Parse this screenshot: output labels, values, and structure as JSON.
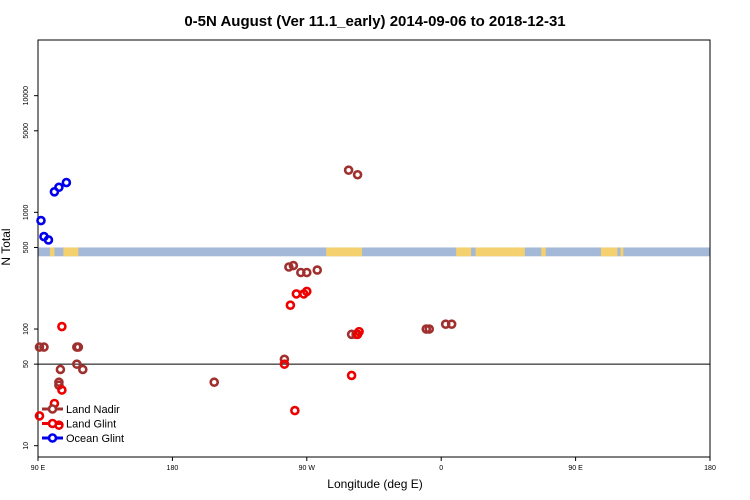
{
  "chart_data": {
    "type": "scatter",
    "title": "0-5N August (Ver 11.1_early)   2014-09-06 to 2018-12-31",
    "xlabel": "Longitude (deg E)",
    "ylabel": "N Total",
    "xlim": [
      90,
      540
    ],
    "ylim_log": [
      8,
      30000
    ],
    "y_scale": "log",
    "x_ticks": [
      {
        "value": 90,
        "label": "90 E"
      },
      {
        "value": 180,
        "label": "180"
      },
      {
        "value": 270,
        "label": "90 W"
      },
      {
        "value": 360,
        "label": "0"
      },
      {
        "value": 450,
        "label": "90 E"
      },
      {
        "value": 540,
        "label": "180"
      }
    ],
    "y_ticks": [
      {
        "value": 10,
        "label": "10"
      },
      {
        "value": 50,
        "label": "50"
      },
      {
        "value": 100,
        "label": "100"
      },
      {
        "value": 500,
        "label": "500"
      },
      {
        "value": 1000,
        "label": "1000"
      },
      {
        "value": 5000,
        "label": "5000"
      },
      {
        "value": 10000,
        "label": "10000"
      }
    ],
    "reference_line": 50,
    "map_band": {
      "y_low": 420,
      "y_high": 500,
      "color": "#a4b8d8",
      "land_color": "#f5d06e"
    },
    "land_segments": [
      [
        98,
        101
      ],
      [
        107,
        117
      ],
      [
        283,
        307
      ],
      [
        370,
        380
      ],
      [
        383,
        416
      ],
      [
        427,
        430
      ],
      [
        467,
        478
      ],
      [
        480,
        482
      ]
    ],
    "legend": {
      "position": "bottom-left"
    },
    "series": [
      {
        "name": "Land Nadir",
        "color": "#a0302e",
        "points": [
          [
            298,
            2300
          ],
          [
            304,
            2100
          ],
          [
            116,
            50
          ],
          [
            105,
            45
          ],
          [
            104,
            33
          ],
          [
            104,
            35
          ],
          [
            120,
            45
          ],
          [
            117,
            70
          ],
          [
            116,
            70
          ],
          [
            94,
            70
          ],
          [
            91,
            70
          ],
          [
            258,
            340
          ],
          [
            261,
            350
          ],
          [
            266,
            305
          ],
          [
            270,
            305
          ],
          [
            277,
            320
          ],
          [
            255,
            55
          ],
          [
            208,
            35
          ],
          [
            300,
            90
          ],
          [
            303,
            90
          ],
          [
            350,
            100
          ],
          [
            352,
            100
          ],
          [
            363,
            110
          ],
          [
            367,
            110
          ]
        ]
      },
      {
        "name": "Land Glint",
        "color": "#ee0000",
        "points": [
          [
            101,
            23
          ],
          [
            91,
            18
          ],
          [
            104,
            15
          ],
          [
            106,
            105
          ],
          [
            106,
            30
          ],
          [
            259,
            160
          ],
          [
            263,
            200
          ],
          [
            268,
            200
          ],
          [
            270,
            210
          ],
          [
            255,
            50
          ],
          [
            262,
            20
          ],
          [
            300,
            40
          ],
          [
            304,
            90
          ],
          [
            305,
            95
          ]
        ]
      },
      {
        "name": "Ocean Glint",
        "color": "#0000ee",
        "points": [
          [
            92,
            850
          ],
          [
            94,
            620
          ],
          [
            97,
            580
          ],
          [
            101,
            1500
          ],
          [
            104,
            1640
          ],
          [
            109,
            1800
          ]
        ]
      }
    ]
  }
}
